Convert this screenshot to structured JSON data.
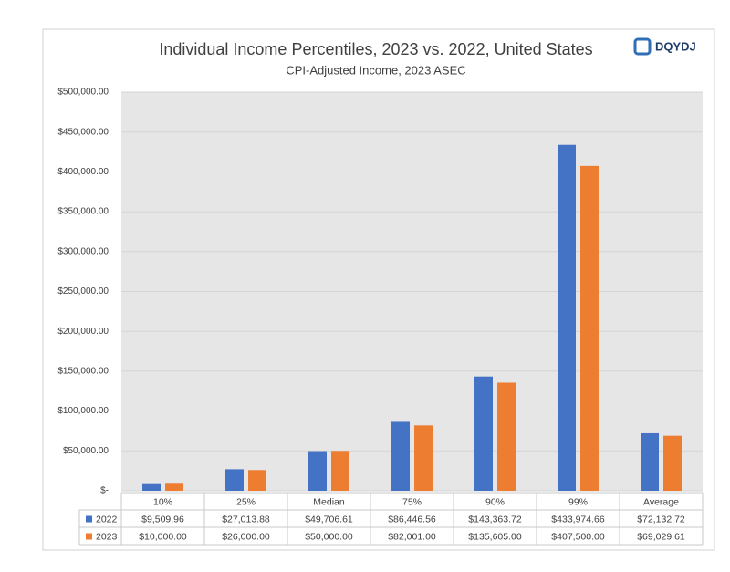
{
  "logo": "DQYDJ",
  "chart_data": {
    "type": "bar",
    "title": "Individual Income Percentiles, 2023 vs. 2022, United States",
    "subtitle": "CPI-Adjusted Income, 2023 ASEC",
    "categories": [
      "10%",
      "25%",
      "Median",
      "75%",
      "90%",
      "99%",
      "Average"
    ],
    "series": [
      {
        "name": "2022",
        "color": "#4472c4",
        "values": [
          9509.96,
          27013.88,
          49706.61,
          86446.56,
          143363.72,
          433974.66,
          72132.72
        ],
        "value_labels": [
          "$9,509.96",
          "$27,013.88",
          "$49,706.61",
          "$86,446.56",
          "$143,363.72",
          "$433,974.66",
          "$72,132.72"
        ]
      },
      {
        "name": "2023",
        "color": "#ed7d31",
        "values": [
          10000,
          26000,
          50000,
          82001,
          135605,
          407500,
          69029.61
        ],
        "value_labels": [
          "$10,000.00",
          "$26,000.00",
          "$50,000.00",
          "$82,001.00",
          "$135,605.00",
          "$407,500.00",
          "$69,029.61"
        ]
      }
    ],
    "ylim": [
      0,
      500000
    ],
    "yticks": [
      {
        "value": 0,
        "label": "$-"
      },
      {
        "value": 50000,
        "label": "$50,000.00"
      },
      {
        "value": 100000,
        "label": "$100,000.00"
      },
      {
        "value": 150000,
        "label": "$150,000.00"
      },
      {
        "value": 200000,
        "label": "$200,000.00"
      },
      {
        "value": 250000,
        "label": "$250,000.00"
      },
      {
        "value": 300000,
        "label": "$300,000.00"
      },
      {
        "value": 350000,
        "label": "$350,000.00"
      },
      {
        "value": 400000,
        "label": "$400,000.00"
      },
      {
        "value": 450000,
        "label": "$450,000.00"
      },
      {
        "value": 500000,
        "label": "$500,000.00"
      }
    ],
    "grid": true,
    "data_table": true
  }
}
